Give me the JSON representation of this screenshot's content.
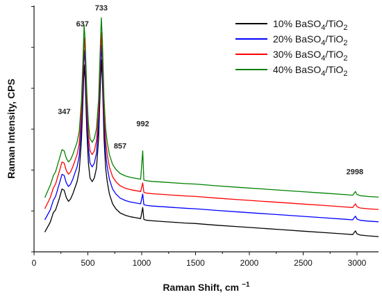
{
  "chart_data": {
    "type": "line",
    "xlabel": "Raman Shift, cm",
    "xlabel_sup": "−1",
    "ylabel": "Raman Intensity, CPS",
    "xlim": [
      0,
      3200
    ],
    "ylim": [
      0,
      100
    ],
    "x_ticks": [
      "0",
      "500",
      "1000",
      "1500",
      "2000",
      "2500",
      "3000"
    ],
    "y_tick_labels_shown": false,
    "grid": false,
    "legend_position": "top-right",
    "legend": [
      {
        "name_prefix": "10% BaSO",
        "sub1": "4",
        "mid": "/TiO",
        "sub2": "2",
        "color": "#000000"
      },
      {
        "name_prefix": "20% BaSO",
        "sub1": "4",
        "mid": "/TiO",
        "sub2": "2",
        "color": "#0000ff"
      },
      {
        "name_prefix": "30% BaSO",
        "sub1": "4",
        "mid": "/TiO",
        "sub2": "2",
        "color": "#ff0000"
      },
      {
        "name_prefix": "40% BaSO",
        "sub1": "4",
        "mid": "/TiO",
        "sub2": "2",
        "color": "#008000"
      }
    ],
    "annotations": [
      {
        "text": "347",
        "x": 280,
        "y": 56
      },
      {
        "text": "637",
        "x": 450,
        "y": 91.5
      },
      {
        "text": "733",
        "x": 625,
        "y": 98
      },
      {
        "text": "857",
        "x": 800,
        "y": 42
      },
      {
        "text": "992",
        "x": 1010,
        "y": 51
      },
      {
        "text": "2998",
        "x": 2980,
        "y": 31.5
      }
    ],
    "x": [
      100,
      150,
      180,
      200,
      230,
      260,
      280,
      300,
      320,
      340,
      360,
      380,
      400,
      420,
      440,
      455,
      465,
      475,
      490,
      505,
      520,
      540,
      560,
      580,
      600,
      615,
      625,
      635,
      650,
      665,
      680,
      700,
      730,
      760,
      800,
      850,
      900,
      950,
      990,
      1010,
      1020,
      1030,
      1050,
      1100,
      1200,
      1300,
      1400,
      1500,
      1700,
      1900,
      2100,
      2300,
      2500,
      2700,
      2900,
      2960,
      2985,
      3000,
      3030,
      3100,
      3200
    ],
    "series": [
      {
        "name": "10% BaSO4/TiO2",
        "color": "#000000",
        "values": [
          8,
          12,
          16,
          17,
          21,
          25.5,
          25,
          22,
          20.5,
          21.5,
          23.5,
          26,
          28.5,
          33,
          45,
          62,
          76,
          70,
          49,
          36,
          30,
          28.5,
          30,
          34,
          46,
          66,
          78,
          70,
          46,
          34,
          28.5,
          23.5,
          19.5,
          17.5,
          15.8,
          14.8,
          14.2,
          13.8,
          13.5,
          18,
          13.2,
          13,
          12.8,
          12.6,
          12.3,
          12,
          11.7,
          11.5,
          10.8,
          10.2,
          9.6,
          9,
          8.4,
          7.8,
          7.2,
          7,
          8.5,
          7.3,
          6.8,
          6.5,
          6.2
        ]
      },
      {
        "name": "20% BaSO4/TiO2",
        "color": "#0000ff",
        "values": [
          13,
          17,
          21,
          22.5,
          27,
          31.5,
          31,
          28,
          26.5,
          27.5,
          29.5,
          32,
          34.5,
          39,
          51,
          68,
          82,
          76,
          55,
          42,
          36,
          34.5,
          36,
          40,
          52,
          72,
          84,
          76,
          52,
          40,
          34.5,
          29.5,
          25.5,
          23.5,
          21.8,
          20.8,
          20.2,
          19.8,
          19.5,
          23.5,
          19.2,
          19,
          18.8,
          18.6,
          18.3,
          18,
          17.7,
          17.5,
          16.8,
          16.2,
          15.6,
          15,
          14.4,
          13.8,
          13.2,
          13,
          14.5,
          13.3,
          12.8,
          12.5,
          12.2
        ]
      },
      {
        "name": "30% BaSO4/TiO2",
        "color": "#ff0000",
        "values": [
          17.5,
          22,
          26,
          27.5,
          32,
          36.5,
          36,
          33,
          31.5,
          32.5,
          34.5,
          37,
          39.5,
          44,
          56,
          73,
          87,
          81,
          60,
          47,
          41,
          39.5,
          41,
          45,
          57,
          77,
          89,
          81,
          57,
          45,
          39.5,
          34.5,
          30.5,
          28.5,
          26.8,
          25.8,
          25.2,
          24.8,
          24.5,
          28,
          24.2,
          24,
          23.8,
          23.6,
          23.3,
          23,
          22.7,
          22.5,
          21.8,
          21.2,
          20.6,
          20,
          19.4,
          18.8,
          18.2,
          18,
          19.5,
          18.3,
          17.8,
          17.5,
          17.2
        ]
      },
      {
        "name": "40% BaSO4/TiO2",
        "color": "#008000",
        "values": [
          22,
          27,
          31,
          32.5,
          37,
          41.5,
          41,
          38,
          36.5,
          37.5,
          39.5,
          42,
          44.5,
          49,
          61,
          78,
          92,
          86,
          65,
          52,
          46,
          44.5,
          46,
          50,
          62,
          82,
          95,
          86,
          62,
          50,
          44.5,
          39.5,
          35.5,
          33.5,
          31.8,
          30.8,
          30.2,
          29.8,
          29.5,
          41,
          29.2,
          29,
          28.8,
          28.6,
          28.3,
          28,
          27.7,
          27.5,
          26.8,
          26.2,
          25.6,
          25,
          24.4,
          23.8,
          23.2,
          23,
          24.5,
          23.3,
          22.8,
          22.5,
          22.2
        ]
      }
    ]
  }
}
